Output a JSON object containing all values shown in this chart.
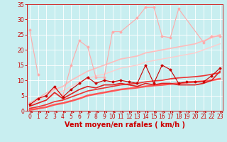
{
  "background_color": "#c8eef0",
  "grid_color": "#ffffff",
  "xlabel": "Vent moyen/en rafales ( km/h )",
  "xlabel_color": "#cc0000",
  "xlabel_fontsize": 7,
  "ylabel_ticks": [
    0,
    5,
    10,
    15,
    20,
    25,
    30,
    35
  ],
  "xticks": [
    0,
    1,
    2,
    3,
    4,
    5,
    6,
    7,
    8,
    9,
    10,
    11,
    12,
    13,
    14,
    15,
    16,
    17,
    18,
    19,
    20,
    21,
    22,
    23
  ],
  "xlim": [
    -0.3,
    23.3
  ],
  "ylim": [
    0,
    35
  ],
  "tick_color": "#cc0000",
  "tick_fontsize": 5.5,
  "series": [
    {
      "x": [
        0,
        1
      ],
      "y": [
        26.5,
        12
      ],
      "color": "#ffaaaa",
      "linewidth": 0.8,
      "marker": "D",
      "markersize": 1.5,
      "zorder": 3
    },
    {
      "x": [
        0,
        3,
        4,
        5,
        6,
        7,
        8,
        9,
        10,
        11,
        13,
        14,
        15,
        16,
        17,
        18,
        21,
        22,
        23
      ],
      "y": [
        2.5,
        7.5,
        5,
        15,
        23,
        21,
        11,
        11,
        26,
        26,
        30.5,
        34,
        34,
        24.5,
        24,
        33.5,
        22.5,
        24.5,
        24.5
      ],
      "color": "#ffaaaa",
      "linewidth": 0.8,
      "marker": "D",
      "markersize": 1.5,
      "zorder": 3
    },
    {
      "x": [
        0,
        1,
        2,
        3,
        4,
        5,
        6,
        7,
        8,
        9,
        10,
        11,
        12,
        13,
        14,
        15,
        16,
        17,
        18,
        19,
        20,
        21,
        22,
        23
      ],
      "y": [
        2.0,
        3.5,
        5.0,
        7.0,
        8.0,
        10.0,
        11.5,
        13.0,
        14.0,
        15.0,
        16.0,
        17.0,
        17.5,
        18.0,
        19.0,
        19.5,
        20.0,
        20.5,
        21.0,
        21.5,
        22.0,
        23.0,
        24.0,
        25.0
      ],
      "color": "#ffbbbb",
      "linewidth": 1.2,
      "marker": null,
      "markersize": 0,
      "zorder": 2
    },
    {
      "x": [
        0,
        1,
        2,
        3,
        4,
        5,
        6,
        7,
        8,
        9,
        10,
        11,
        12,
        13,
        14,
        15,
        16,
        17,
        18,
        19,
        20,
        21,
        22,
        23
      ],
      "y": [
        1.5,
        2.5,
        3.5,
        5.5,
        6.5,
        8.0,
        9.5,
        10.5,
        11.5,
        12.0,
        13.0,
        14.0,
        14.5,
        15.0,
        16.0,
        16.5,
        17.0,
        17.5,
        18.0,
        18.5,
        19.0,
        20.0,
        21.0,
        22.0
      ],
      "color": "#ffcccc",
      "linewidth": 1.0,
      "marker": null,
      "markersize": 0,
      "zorder": 2
    },
    {
      "x": [
        0,
        1,
        2,
        3,
        4,
        5,
        6,
        7,
        8,
        9,
        10,
        11,
        12,
        13,
        14,
        15,
        16,
        17,
        18,
        19,
        20,
        21,
        22,
        23
      ],
      "y": [
        2,
        4,
        5,
        8,
        4.5,
        7,
        9,
        11,
        9,
        10,
        9.5,
        10,
        9.5,
        9,
        15,
        9,
        15,
        13.5,
        9,
        9.5,
        9.5,
        9.5,
        11.5,
        14
      ],
      "color": "#cc0000",
      "linewidth": 0.8,
      "marker": "D",
      "markersize": 1.5,
      "zorder": 4
    },
    {
      "x": [
        0,
        1,
        2,
        3,
        4,
        5,
        6,
        7,
        8,
        9,
        10,
        11,
        12,
        13,
        14,
        15,
        16,
        17,
        18,
        19,
        20,
        21,
        22,
        23
      ],
      "y": [
        1.5,
        2.5,
        3.5,
        6,
        4,
        5.5,
        7,
        8,
        7.5,
        8.5,
        8.5,
        9,
        8.5,
        8,
        9,
        8.5,
        9,
        9,
        8.5,
        8.5,
        8.5,
        9,
        10,
        13
      ],
      "color": "#dd2222",
      "linewidth": 1.2,
      "marker": null,
      "markersize": 0,
      "zorder": 3
    },
    {
      "x": [
        0,
        1,
        2,
        3,
        4,
        5,
        6,
        7,
        8,
        9,
        10,
        11,
        12,
        13,
        14,
        15,
        16,
        17,
        18,
        19,
        20,
        21,
        22,
        23
      ],
      "y": [
        0.8,
        1.3,
        2.0,
        3.0,
        3.5,
        4.5,
        5.5,
        6.5,
        7.0,
        7.5,
        8.0,
        8.5,
        8.8,
        9.0,
        9.5,
        9.8,
        10.0,
        10.5,
        10.8,
        11.0,
        11.2,
        11.5,
        12.0,
        12.5
      ],
      "color": "#ee3333",
      "linewidth": 1.2,
      "marker": null,
      "markersize": 0,
      "zorder": 2
    },
    {
      "x": [
        0,
        1,
        2,
        3,
        4,
        5,
        6,
        7,
        8,
        9,
        10,
        11,
        12,
        13,
        14,
        15,
        16,
        17,
        18,
        19,
        20,
        21,
        22,
        23
      ],
      "y": [
        0.3,
        0.7,
        1.2,
        2.0,
        2.5,
        3.2,
        4.0,
        5.0,
        5.5,
        6.0,
        6.5,
        7.0,
        7.3,
        7.6,
        8.0,
        8.3,
        8.5,
        8.8,
        9.0,
        9.3,
        9.5,
        9.7,
        10.0,
        10.5
      ],
      "color": "#ff5555",
      "linewidth": 1.8,
      "marker": null,
      "markersize": 0,
      "zorder": 2
    }
  ],
  "arrow_color": "#cc0000"
}
